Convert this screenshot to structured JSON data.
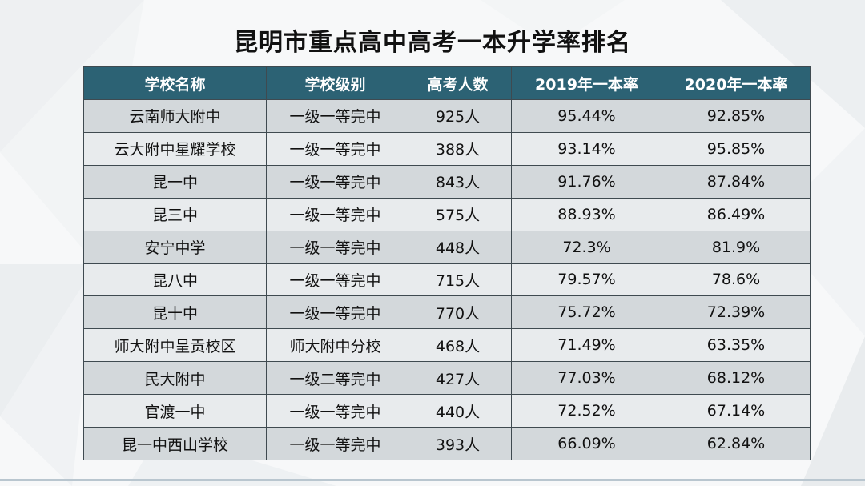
{
  "title": "昆明市重点高中高考一本升学率排名",
  "table": {
    "headers": [
      "学校名称",
      "学校级别",
      "高考人数",
      "2019年一本率",
      "2020年一本率"
    ],
    "rows": [
      [
        "云南师大附中",
        "一级一等完中",
        "925人",
        "95.44%",
        "92.85%"
      ],
      [
        "云大附中星耀学校",
        "一级一等完中",
        "388人",
        "93.14%",
        "95.85%"
      ],
      [
        "昆一中",
        "一级一等完中",
        "843人",
        "91.76%",
        "87.84%"
      ],
      [
        "昆三中",
        "一级一等完中",
        "575人",
        "88.93%",
        "86.49%"
      ],
      [
        "安宁中学",
        "一级一等完中",
        "448人",
        "72.3%",
        "81.9%"
      ],
      [
        "昆八中",
        "一级一等完中",
        "715人",
        "79.57%",
        "78.6%"
      ],
      [
        "昆十中",
        "一级一等完中",
        "770人",
        "75.72%",
        "72.39%"
      ],
      [
        "师大附中呈贡校区",
        "师大附中分校",
        "468人",
        "71.49%",
        "63.35%"
      ],
      [
        "民大附中",
        "一级二等完中",
        "427人",
        "77.03%",
        "68.12%"
      ],
      [
        "官渡一中",
        "一级一等完中",
        "440人",
        "72.52%",
        "67.14%"
      ],
      [
        "昆一中西山学校",
        "一级一等完中",
        "393人",
        "66.09%",
        "62.84%"
      ]
    ]
  },
  "colors": {
    "header_bg": "#2c6274",
    "row_odd": "#d3d8db",
    "row_even": "#e8ebed"
  }
}
